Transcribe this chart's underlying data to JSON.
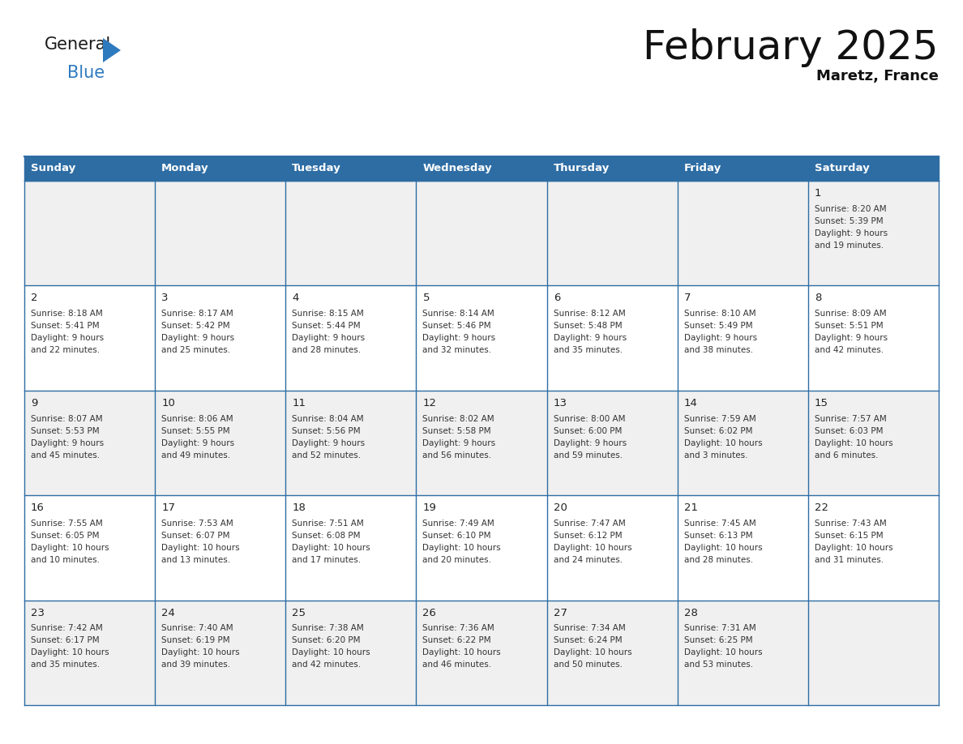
{
  "title": "February 2025",
  "subtitle": "Maretz, France",
  "header_bg": "#2E6DA4",
  "header_text_color": "#FFFFFF",
  "cell_bg_odd": "#F0F0F0",
  "cell_bg_even": "#FFFFFF",
  "border_color": "#2E6DA4",
  "text_color": "#333333",
  "day_num_color": "#222222",
  "day_headers": [
    "Sunday",
    "Monday",
    "Tuesday",
    "Wednesday",
    "Thursday",
    "Friday",
    "Saturday"
  ],
  "days": [
    {
      "day": 1,
      "col": 6,
      "row": 0,
      "sunrise": "8:20 AM",
      "sunset": "5:39 PM",
      "daylight": "9 hours and 19 minutes."
    },
    {
      "day": 2,
      "col": 0,
      "row": 1,
      "sunrise": "8:18 AM",
      "sunset": "5:41 PM",
      "daylight": "9 hours and 22 minutes."
    },
    {
      "day": 3,
      "col": 1,
      "row": 1,
      "sunrise": "8:17 AM",
      "sunset": "5:42 PM",
      "daylight": "9 hours and 25 minutes."
    },
    {
      "day": 4,
      "col": 2,
      "row": 1,
      "sunrise": "8:15 AM",
      "sunset": "5:44 PM",
      "daylight": "9 hours and 28 minutes."
    },
    {
      "day": 5,
      "col": 3,
      "row": 1,
      "sunrise": "8:14 AM",
      "sunset": "5:46 PM",
      "daylight": "9 hours and 32 minutes."
    },
    {
      "day": 6,
      "col": 4,
      "row": 1,
      "sunrise": "8:12 AM",
      "sunset": "5:48 PM",
      "daylight": "9 hours and 35 minutes."
    },
    {
      "day": 7,
      "col": 5,
      "row": 1,
      "sunrise": "8:10 AM",
      "sunset": "5:49 PM",
      "daylight": "9 hours and 38 minutes."
    },
    {
      "day": 8,
      "col": 6,
      "row": 1,
      "sunrise": "8:09 AM",
      "sunset": "5:51 PM",
      "daylight": "9 hours and 42 minutes."
    },
    {
      "day": 9,
      "col": 0,
      "row": 2,
      "sunrise": "8:07 AM",
      "sunset": "5:53 PM",
      "daylight": "9 hours and 45 minutes."
    },
    {
      "day": 10,
      "col": 1,
      "row": 2,
      "sunrise": "8:06 AM",
      "sunset": "5:55 PM",
      "daylight": "9 hours and 49 minutes."
    },
    {
      "day": 11,
      "col": 2,
      "row": 2,
      "sunrise": "8:04 AM",
      "sunset": "5:56 PM",
      "daylight": "9 hours and 52 minutes."
    },
    {
      "day": 12,
      "col": 3,
      "row": 2,
      "sunrise": "8:02 AM",
      "sunset": "5:58 PM",
      "daylight": "9 hours and 56 minutes."
    },
    {
      "day": 13,
      "col": 4,
      "row": 2,
      "sunrise": "8:00 AM",
      "sunset": "6:00 PM",
      "daylight": "9 hours and 59 minutes."
    },
    {
      "day": 14,
      "col": 5,
      "row": 2,
      "sunrise": "7:59 AM",
      "sunset": "6:02 PM",
      "daylight": "10 hours and 3 minutes."
    },
    {
      "day": 15,
      "col": 6,
      "row": 2,
      "sunrise": "7:57 AM",
      "sunset": "6:03 PM",
      "daylight": "10 hours and 6 minutes."
    },
    {
      "day": 16,
      "col": 0,
      "row": 3,
      "sunrise": "7:55 AM",
      "sunset": "6:05 PM",
      "daylight": "10 hours and 10 minutes."
    },
    {
      "day": 17,
      "col": 1,
      "row": 3,
      "sunrise": "7:53 AM",
      "sunset": "6:07 PM",
      "daylight": "10 hours and 13 minutes."
    },
    {
      "day": 18,
      "col": 2,
      "row": 3,
      "sunrise": "7:51 AM",
      "sunset": "6:08 PM",
      "daylight": "10 hours and 17 minutes."
    },
    {
      "day": 19,
      "col": 3,
      "row": 3,
      "sunrise": "7:49 AM",
      "sunset": "6:10 PM",
      "daylight": "10 hours and 20 minutes."
    },
    {
      "day": 20,
      "col": 4,
      "row": 3,
      "sunrise": "7:47 AM",
      "sunset": "6:12 PM",
      "daylight": "10 hours and 24 minutes."
    },
    {
      "day": 21,
      "col": 5,
      "row": 3,
      "sunrise": "7:45 AM",
      "sunset": "6:13 PM",
      "daylight": "10 hours and 28 minutes."
    },
    {
      "day": 22,
      "col": 6,
      "row": 3,
      "sunrise": "7:43 AM",
      "sunset": "6:15 PM",
      "daylight": "10 hours and 31 minutes."
    },
    {
      "day": 23,
      "col": 0,
      "row": 4,
      "sunrise": "7:42 AM",
      "sunset": "6:17 PM",
      "daylight": "10 hours and 35 minutes."
    },
    {
      "day": 24,
      "col": 1,
      "row": 4,
      "sunrise": "7:40 AM",
      "sunset": "6:19 PM",
      "daylight": "10 hours and 39 minutes."
    },
    {
      "day": 25,
      "col": 2,
      "row": 4,
      "sunrise": "7:38 AM",
      "sunset": "6:20 PM",
      "daylight": "10 hours and 42 minutes."
    },
    {
      "day": 26,
      "col": 3,
      "row": 4,
      "sunrise": "7:36 AM",
      "sunset": "6:22 PM",
      "daylight": "10 hours and 46 minutes."
    },
    {
      "day": 27,
      "col": 4,
      "row": 4,
      "sunrise": "7:34 AM",
      "sunset": "6:24 PM",
      "daylight": "10 hours and 50 minutes."
    },
    {
      "day": 28,
      "col": 5,
      "row": 4,
      "sunrise": "7:31 AM",
      "sunset": "6:25 PM",
      "daylight": "10 hours and 53 minutes."
    }
  ],
  "num_rows": 5,
  "logo_general_color": "#1a1a1a",
  "logo_blue_color": "#2E7ABF",
  "logo_triangle_color": "#2E7ABF",
  "title_fontsize": 36,
  "subtitle_fontsize": 13,
  "header_fontsize": 9.5,
  "day_num_fontsize": 9.5,
  "cell_text_fontsize": 7.5
}
